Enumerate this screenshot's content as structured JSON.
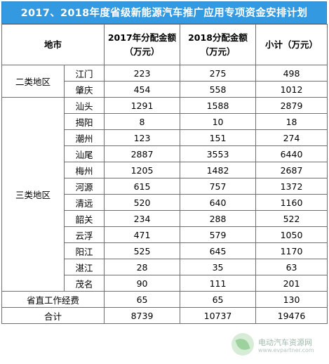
{
  "title": "2017、2018年度省级新能源汽车推广应用专项资金安排计划",
  "header": {
    "region": "地市",
    "col2017": "2017年分配金额",
    "col2017_unit": "（万元）",
    "col2018": "2018分配金额",
    "col2018_unit": "（万元）",
    "subtotal": "小计（万元）"
  },
  "groups": {
    "class2": "二类地区",
    "class3": "三类地区"
  },
  "rows": [
    {
      "city": "江门",
      "v2017": "223",
      "v2018": "275",
      "sub": "498"
    },
    {
      "city": "肇庆",
      "v2017": "454",
      "v2018": "558",
      "sub": "1012"
    },
    {
      "city": "汕头",
      "v2017": "1291",
      "v2018": "1588",
      "sub": "2879"
    },
    {
      "city": "揭阳",
      "v2017": "8",
      "v2018": "10",
      "sub": "18"
    },
    {
      "city": "潮州",
      "v2017": "123",
      "v2018": "151",
      "sub": "274"
    },
    {
      "city": "汕尾",
      "v2017": "2887",
      "v2018": "3553",
      "sub": "6440"
    },
    {
      "city": "梅州",
      "v2017": "1205",
      "v2018": "1482",
      "sub": "2687"
    },
    {
      "city": "河源",
      "v2017": "615",
      "v2018": "757",
      "sub": "1372"
    },
    {
      "city": "清远",
      "v2017": "520",
      "v2018": "640",
      "sub": "1160"
    },
    {
      "city": "韶关",
      "v2017": "234",
      "v2018": "288",
      "sub": "522"
    },
    {
      "city": "云浮",
      "v2017": "471",
      "v2018": "579",
      "sub": "1050"
    },
    {
      "city": "阳江",
      "v2017": "525",
      "v2018": "645",
      "sub": "1170"
    },
    {
      "city": "湛江",
      "v2017": "28",
      "v2018": "35",
      "sub": "63"
    },
    {
      "city": "茂名",
      "v2017": "90",
      "v2018": "111",
      "sub": "201"
    }
  ],
  "provincial": {
    "label": "省直工作经费",
    "v2017": "65",
    "v2018": "65",
    "sub": "130"
  },
  "total": {
    "label": "合计",
    "v2017": "8739",
    "v2018": "10737",
    "sub": "19476"
  },
  "watermark": {
    "name": "电动汽车资源网",
    "url": "www.evpartner.com",
    "icon": "leaf-logo-icon"
  }
}
